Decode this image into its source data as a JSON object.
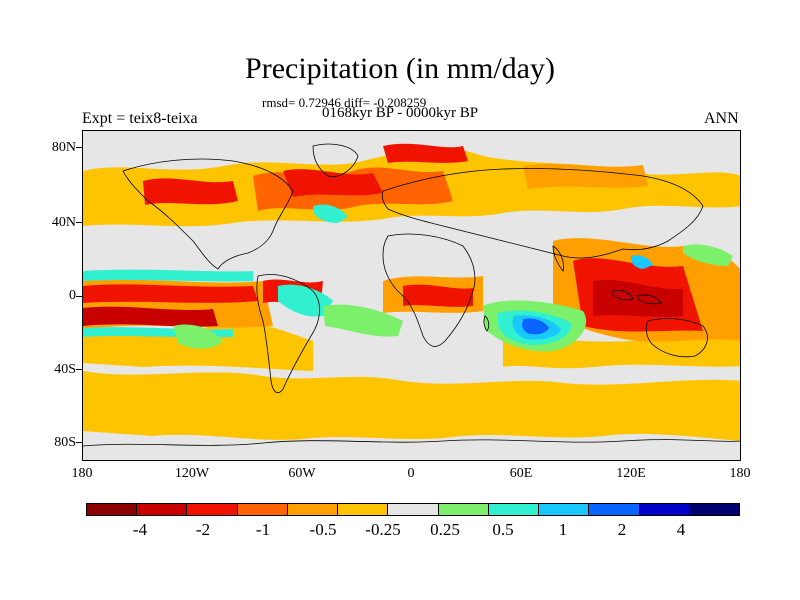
{
  "title": "Precipitation (in mm/day)",
  "stats": "rmsd= 0.72946 diff= -0.208259",
  "period": "0168kyr BP - 0000kyr BP",
  "expt": "Expt = teix8-teixa",
  "season": "ANN",
  "lat_labels": [
    "80N",
    "40N",
    "0",
    "40S",
    "80S"
  ],
  "lon_labels": [
    "180",
    "120W",
    "60W",
    "0",
    "60E",
    "120E",
    "180"
  ],
  "colorbar": {
    "colors": [
      "#8c0000",
      "#c80000",
      "#f01400",
      "#ff6400",
      "#ffa000",
      "#ffc400",
      "#e6e6e6",
      "#7cf06a",
      "#30f0d0",
      "#19c8ff",
      "#0a64ff",
      "#0000c8",
      "#00006e"
    ],
    "labels": [
      "-4",
      "-2",
      "-1",
      "-0.5",
      "-0.25",
      "0.25",
      "0.5",
      "1",
      "2",
      "4"
    ]
  },
  "colors": {
    "neutral": "#e6e6e6",
    "light_orange": "#ffc400",
    "orange": "#ffa000",
    "dark_orange": "#ff6400",
    "red": "#f01400",
    "dark_red": "#c80000",
    "green": "#7cf06a",
    "cyan": "#30f0d0",
    "light_blue": "#19c8ff",
    "blue": "#0a64ff"
  }
}
